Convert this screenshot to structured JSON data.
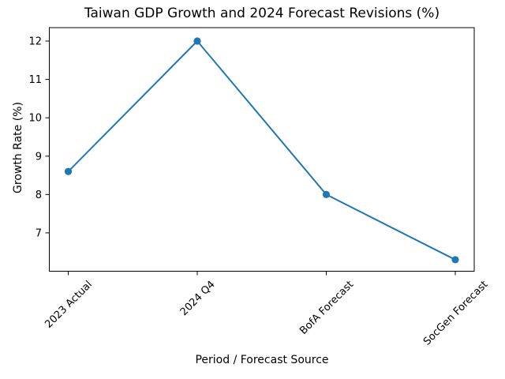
{
  "chart_data": {
    "type": "line",
    "title": "Taiwan GDP Growth and 2024 Forecast Revisions (%)",
    "xlabel": "Period / Forecast Source",
    "ylabel": "Growth Rate (%)",
    "categories": [
      "2023 Actual",
      "2024 Q4",
      "BofA Forecast",
      "SocGen Forecast"
    ],
    "values": [
      8.6,
      12.0,
      8.0,
      6.3
    ],
    "yticks": [
      7,
      8,
      9,
      10,
      11,
      12
    ],
    "ylim": [
      6.0,
      12.35
    ],
    "grid": false,
    "legend": "none",
    "marker": "circle",
    "x_tick_label_rotation_deg": 45,
    "colors": {
      "line": "#1f77b4",
      "marker": "#1f77b4",
      "text": "#000000",
      "spine": "#000000",
      "background": "#ffffff"
    }
  }
}
